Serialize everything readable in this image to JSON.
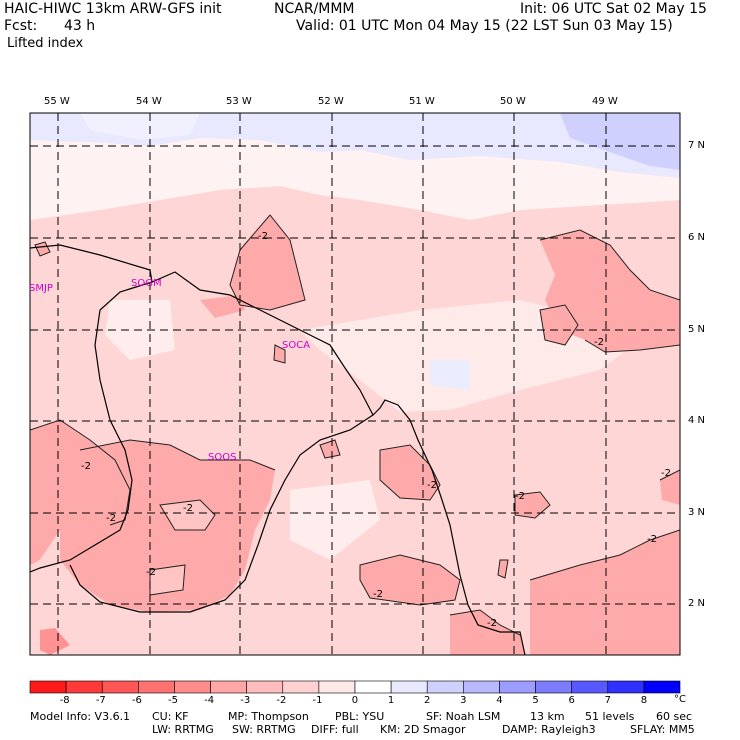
{
  "header": {
    "model": "HAIC-HIWC 13km ARW-GFS init",
    "org": "NCAR/MMM",
    "init": "Init: 06 UTC Sat 02 May 15",
    "fcst_label": "Fcst:",
    "fcst_value": "43 h",
    "valid": "Valid: 01 UTC Mon 04 May 15 (22 LST Sun 03 May 15)",
    "field": "Lifted index"
  },
  "map": {
    "lon_labels": [
      "55 W",
      "54 W",
      "53 W",
      "52 W",
      "51 W",
      "50 W",
      "49 W"
    ],
    "lat_labels": [
      "7 N",
      "6 N",
      "5 N",
      "4 N",
      "3 N",
      "2 N"
    ],
    "stations": [
      "SMJP",
      "SOGM",
      "SOCA",
      "SOOS"
    ],
    "contour_label": "-2"
  },
  "colorbar": {
    "ticks": [
      "-8",
      "-7",
      "-6",
      "-5",
      "-4",
      "-3",
      "-2",
      "-1",
      "0",
      "1",
      "2",
      "3",
      "4",
      "5",
      "6",
      "7",
      "8"
    ],
    "unit": "°C",
    "colors": [
      "#ff1a1a",
      "#ff3a3a",
      "#ff5656",
      "#ff7272",
      "#ff8c8c",
      "#ffa6a6",
      "#ffbcbc",
      "#ffd2d2",
      "#ffe8e8",
      "#ffffff",
      "#e8e8ff",
      "#d0d0ff",
      "#b8b8ff",
      "#9c9cff",
      "#7c7cff",
      "#5858ff",
      "#3030ff",
      "#0000ff"
    ]
  },
  "footer": {
    "line1": [
      "Model Info: V3.6.1",
      "CU: KF",
      "MP: Thompson",
      "PBL: YSU",
      "SF: Noah LSM",
      "13 km",
      "51 levels",
      "60 sec"
    ],
    "line2": [
      "LW: RRTMG",
      "SW: RRTMG",
      "DIFF: full",
      "KM: 2D Smagor",
      "DAMP: Rayleigh3",
      "SFLAY: MM5"
    ]
  }
}
